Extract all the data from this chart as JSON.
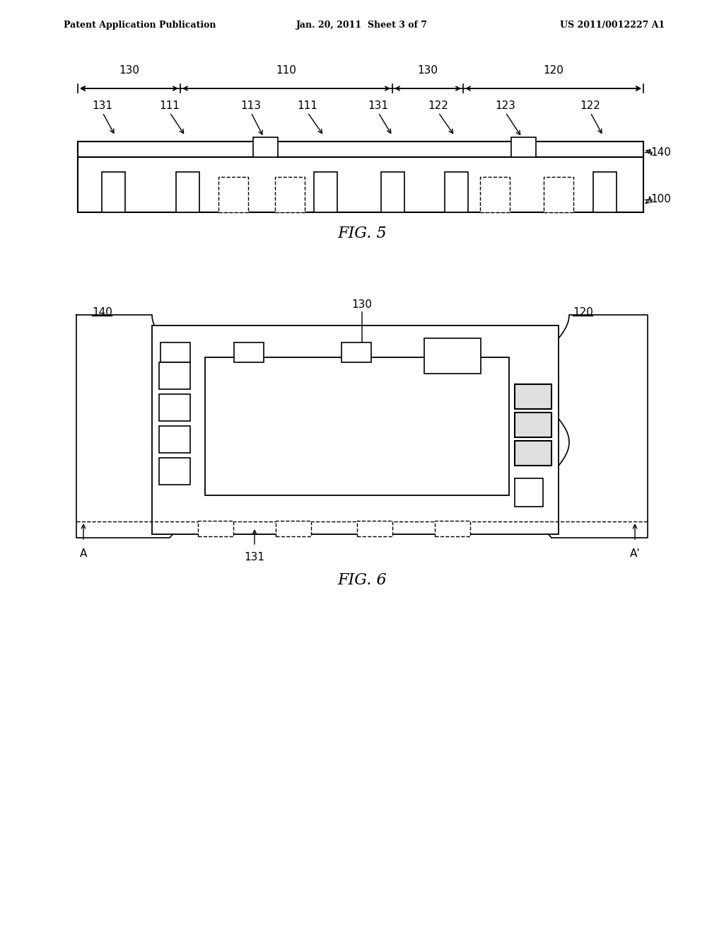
{
  "bg_color": "#ffffff",
  "header_left": "Patent Application Publication",
  "header_center": "Jan. 20, 2011  Sheet 3 of 7",
  "header_right": "US 2011/0012227 A1",
  "fig5_title": "FIG. 5",
  "fig6_title": "FIG. 6",
  "line_color": "#000000",
  "label_color": "#000000"
}
